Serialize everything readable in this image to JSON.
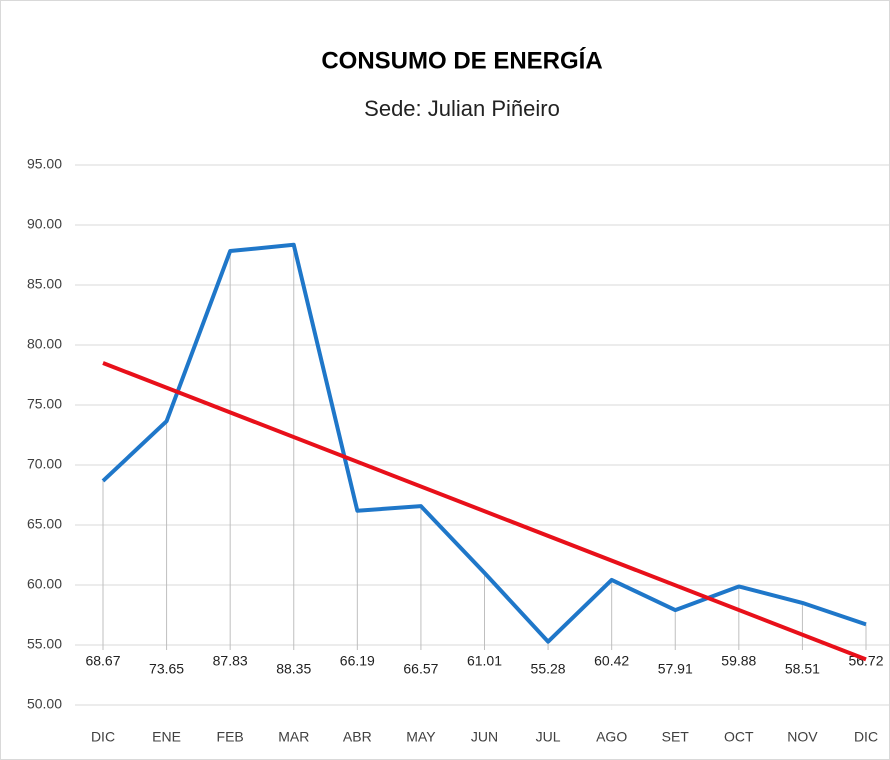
{
  "chart_data": {
    "type": "line",
    "title": "CONSUMO DE ENERGÍA",
    "subtitle": "Sede: Julian Piñeiro",
    "categories": [
      "DIC",
      "ENE",
      "FEB",
      "MAR",
      "ABR",
      "MAY",
      "JUN",
      "JUL",
      "AGO",
      "SET",
      "OCT",
      "NOV",
      "DIC"
    ],
    "series": [
      {
        "color": "#1f77c9",
        "values": [
          68.67,
          73.65,
          87.83,
          88.35,
          66.19,
          66.57,
          61.01,
          55.28,
          60.42,
          57.91,
          59.88,
          58.51,
          56.72
        ]
      }
    ],
    "trendline": {
      "color": "#e8101a",
      "start": 78.5,
      "end": 53.8
    },
    "ylim": [
      50,
      95
    ],
    "yticks": [
      {
        "value": 50,
        "label": "50.00"
      },
      {
        "value": 55,
        "label": "55.00"
      },
      {
        "value": 60,
        "label": "60.00"
      },
      {
        "value": 65,
        "label": "65.00"
      },
      {
        "value": 70,
        "label": "70.00"
      },
      {
        "value": 75,
        "label": "75.00"
      },
      {
        "value": 80,
        "label": "80.00"
      },
      {
        "value": 85,
        "label": "85.00"
      },
      {
        "value": 90,
        "label": "90.00"
      },
      {
        "value": 95,
        "label": "95.00"
      }
    ],
    "grid": true
  }
}
